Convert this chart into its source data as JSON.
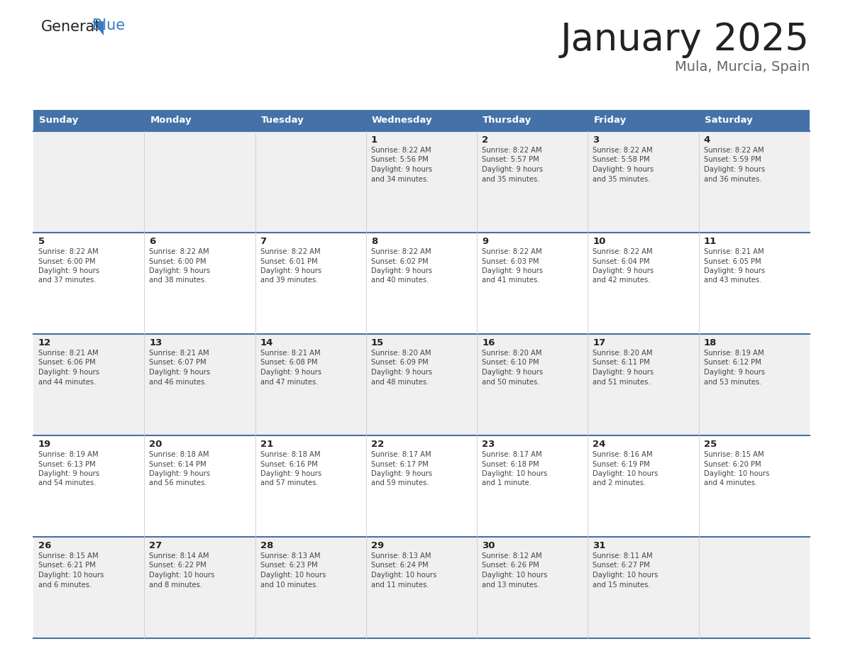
{
  "title": "January 2025",
  "subtitle": "Mula, Murcia, Spain",
  "days_of_week": [
    "Sunday",
    "Monday",
    "Tuesday",
    "Wednesday",
    "Thursday",
    "Friday",
    "Saturday"
  ],
  "header_bg": "#4472a8",
  "header_text": "#ffffff",
  "row_bg_odd": "#f0f0f0",
  "row_bg_even": "#ffffff",
  "border_color": "#4472a8",
  "day_number_color": "#222222",
  "text_color": "#444444",
  "title_color": "#222222",
  "subtitle_color": "#666666",
  "logo_color": "#222222",
  "logo_blue_color": "#3a7abf",
  "calendar": [
    [
      {
        "day": "",
        "lines": []
      },
      {
        "day": "",
        "lines": []
      },
      {
        "day": "",
        "lines": []
      },
      {
        "day": "1",
        "lines": [
          "Sunrise: 8:22 AM",
          "Sunset: 5:56 PM",
          "Daylight: 9 hours",
          "and 34 minutes."
        ]
      },
      {
        "day": "2",
        "lines": [
          "Sunrise: 8:22 AM",
          "Sunset: 5:57 PM",
          "Daylight: 9 hours",
          "and 35 minutes."
        ]
      },
      {
        "day": "3",
        "lines": [
          "Sunrise: 8:22 AM",
          "Sunset: 5:58 PM",
          "Daylight: 9 hours",
          "and 35 minutes."
        ]
      },
      {
        "day": "4",
        "lines": [
          "Sunrise: 8:22 AM",
          "Sunset: 5:59 PM",
          "Daylight: 9 hours",
          "and 36 minutes."
        ]
      }
    ],
    [
      {
        "day": "5",
        "lines": [
          "Sunrise: 8:22 AM",
          "Sunset: 6:00 PM",
          "Daylight: 9 hours",
          "and 37 minutes."
        ]
      },
      {
        "day": "6",
        "lines": [
          "Sunrise: 8:22 AM",
          "Sunset: 6:00 PM",
          "Daylight: 9 hours",
          "and 38 minutes."
        ]
      },
      {
        "day": "7",
        "lines": [
          "Sunrise: 8:22 AM",
          "Sunset: 6:01 PM",
          "Daylight: 9 hours",
          "and 39 minutes."
        ]
      },
      {
        "day": "8",
        "lines": [
          "Sunrise: 8:22 AM",
          "Sunset: 6:02 PM",
          "Daylight: 9 hours",
          "and 40 minutes."
        ]
      },
      {
        "day": "9",
        "lines": [
          "Sunrise: 8:22 AM",
          "Sunset: 6:03 PM",
          "Daylight: 9 hours",
          "and 41 minutes."
        ]
      },
      {
        "day": "10",
        "lines": [
          "Sunrise: 8:22 AM",
          "Sunset: 6:04 PM",
          "Daylight: 9 hours",
          "and 42 minutes."
        ]
      },
      {
        "day": "11",
        "lines": [
          "Sunrise: 8:21 AM",
          "Sunset: 6:05 PM",
          "Daylight: 9 hours",
          "and 43 minutes."
        ]
      }
    ],
    [
      {
        "day": "12",
        "lines": [
          "Sunrise: 8:21 AM",
          "Sunset: 6:06 PM",
          "Daylight: 9 hours",
          "and 44 minutes."
        ]
      },
      {
        "day": "13",
        "lines": [
          "Sunrise: 8:21 AM",
          "Sunset: 6:07 PM",
          "Daylight: 9 hours",
          "and 46 minutes."
        ]
      },
      {
        "day": "14",
        "lines": [
          "Sunrise: 8:21 AM",
          "Sunset: 6:08 PM",
          "Daylight: 9 hours",
          "and 47 minutes."
        ]
      },
      {
        "day": "15",
        "lines": [
          "Sunrise: 8:20 AM",
          "Sunset: 6:09 PM",
          "Daylight: 9 hours",
          "and 48 minutes."
        ]
      },
      {
        "day": "16",
        "lines": [
          "Sunrise: 8:20 AM",
          "Sunset: 6:10 PM",
          "Daylight: 9 hours",
          "and 50 minutes."
        ]
      },
      {
        "day": "17",
        "lines": [
          "Sunrise: 8:20 AM",
          "Sunset: 6:11 PM",
          "Daylight: 9 hours",
          "and 51 minutes."
        ]
      },
      {
        "day": "18",
        "lines": [
          "Sunrise: 8:19 AM",
          "Sunset: 6:12 PM",
          "Daylight: 9 hours",
          "and 53 minutes."
        ]
      }
    ],
    [
      {
        "day": "19",
        "lines": [
          "Sunrise: 8:19 AM",
          "Sunset: 6:13 PM",
          "Daylight: 9 hours",
          "and 54 minutes."
        ]
      },
      {
        "day": "20",
        "lines": [
          "Sunrise: 8:18 AM",
          "Sunset: 6:14 PM",
          "Daylight: 9 hours",
          "and 56 minutes."
        ]
      },
      {
        "day": "21",
        "lines": [
          "Sunrise: 8:18 AM",
          "Sunset: 6:16 PM",
          "Daylight: 9 hours",
          "and 57 minutes."
        ]
      },
      {
        "day": "22",
        "lines": [
          "Sunrise: 8:17 AM",
          "Sunset: 6:17 PM",
          "Daylight: 9 hours",
          "and 59 minutes."
        ]
      },
      {
        "day": "23",
        "lines": [
          "Sunrise: 8:17 AM",
          "Sunset: 6:18 PM",
          "Daylight: 10 hours",
          "and 1 minute."
        ]
      },
      {
        "day": "24",
        "lines": [
          "Sunrise: 8:16 AM",
          "Sunset: 6:19 PM",
          "Daylight: 10 hours",
          "and 2 minutes."
        ]
      },
      {
        "day": "25",
        "lines": [
          "Sunrise: 8:15 AM",
          "Sunset: 6:20 PM",
          "Daylight: 10 hours",
          "and 4 minutes."
        ]
      }
    ],
    [
      {
        "day": "26",
        "lines": [
          "Sunrise: 8:15 AM",
          "Sunset: 6:21 PM",
          "Daylight: 10 hours",
          "and 6 minutes."
        ]
      },
      {
        "day": "27",
        "lines": [
          "Sunrise: 8:14 AM",
          "Sunset: 6:22 PM",
          "Daylight: 10 hours",
          "and 8 minutes."
        ]
      },
      {
        "day": "28",
        "lines": [
          "Sunrise: 8:13 AM",
          "Sunset: 6:23 PM",
          "Daylight: 10 hours",
          "and 10 minutes."
        ]
      },
      {
        "day": "29",
        "lines": [
          "Sunrise: 8:13 AM",
          "Sunset: 6:24 PM",
          "Daylight: 10 hours",
          "and 11 minutes."
        ]
      },
      {
        "day": "30",
        "lines": [
          "Sunrise: 8:12 AM",
          "Sunset: 6:26 PM",
          "Daylight: 10 hours",
          "and 13 minutes."
        ]
      },
      {
        "day": "31",
        "lines": [
          "Sunrise: 8:11 AM",
          "Sunset: 6:27 PM",
          "Daylight: 10 hours",
          "and 15 minutes."
        ]
      },
      {
        "day": "",
        "lines": []
      }
    ]
  ]
}
